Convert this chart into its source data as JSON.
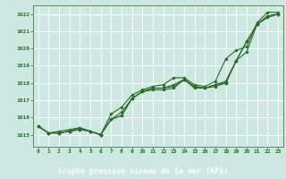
{
  "bg_color": "#cce8e0",
  "plot_bg_color": "#cce8e0",
  "grid_color": "#ffffff",
  "line_color": "#2d6a2d",
  "marker_color": "#2d6a2d",
  "xlabel": "Graphe pression niveau de la mer (hPa)",
  "xlabel_bg": "#4a7c59",
  "xlabel_fg": "#ffffff",
  "xtick_labels": [
    "0",
    "1",
    "2",
    "3",
    "4",
    "5",
    "6",
    "7",
    "8",
    "9",
    "10",
    "11",
    "12",
    "13",
    "14",
    "15",
    "16",
    "17",
    "18",
    "19",
    "20",
    "21",
    "22",
    "23"
  ],
  "ytick_labels": [
    "1015",
    "1016",
    "1017",
    "1018",
    "1019",
    "1020",
    "1021",
    "1022"
  ],
  "ytick_values": [
    1015,
    1016,
    1017,
    1018,
    1019,
    1020,
    1021,
    1022
  ],
  "ylim": [
    1014.3,
    1022.5
  ],
  "xlim": [
    -0.5,
    23.5
  ],
  "series": [
    [
      1015.5,
      1015.1,
      1015.1,
      1015.2,
      1015.3,
      1015.2,
      1015.0,
      1015.9,
      1016.1,
      1017.1,
      1017.5,
      1017.6,
      1017.6,
      1017.7,
      1018.2,
      1017.8,
      1017.7,
      1017.8,
      1018.0,
      1019.3,
      1019.8,
      1021.4,
      1021.8,
      1022.0
    ],
    [
      1015.5,
      1015.1,
      1015.1,
      1015.2,
      1015.3,
      1015.2,
      1015.0,
      1015.9,
      1016.1,
      1017.1,
      1017.5,
      1017.7,
      1017.7,
      1017.8,
      1018.2,
      1017.8,
      1017.7,
      1017.9,
      1018.0,
      1019.3,
      1020.4,
      1021.4,
      1021.8,
      1022.0
    ],
    [
      1015.5,
      1015.1,
      1015.1,
      1015.2,
      1015.4,
      1015.2,
      1015.0,
      1015.9,
      1016.3,
      1017.1,
      1017.5,
      1017.7,
      1017.7,
      1017.9,
      1018.2,
      1017.7,
      1017.7,
      1017.9,
      1018.1,
      1019.3,
      1020.4,
      1021.4,
      1021.9,
      1022.0
    ],
    [
      1015.5,
      1015.1,
      1015.2,
      1015.3,
      1015.4,
      1015.2,
      1015.0,
      1016.2,
      1016.6,
      1017.3,
      1017.6,
      1017.8,
      1017.9,
      1018.3,
      1018.3,
      1017.9,
      1017.8,
      1018.1,
      1019.4,
      1019.9,
      1020.1,
      1021.5,
      1022.1,
      1022.1
    ]
  ]
}
